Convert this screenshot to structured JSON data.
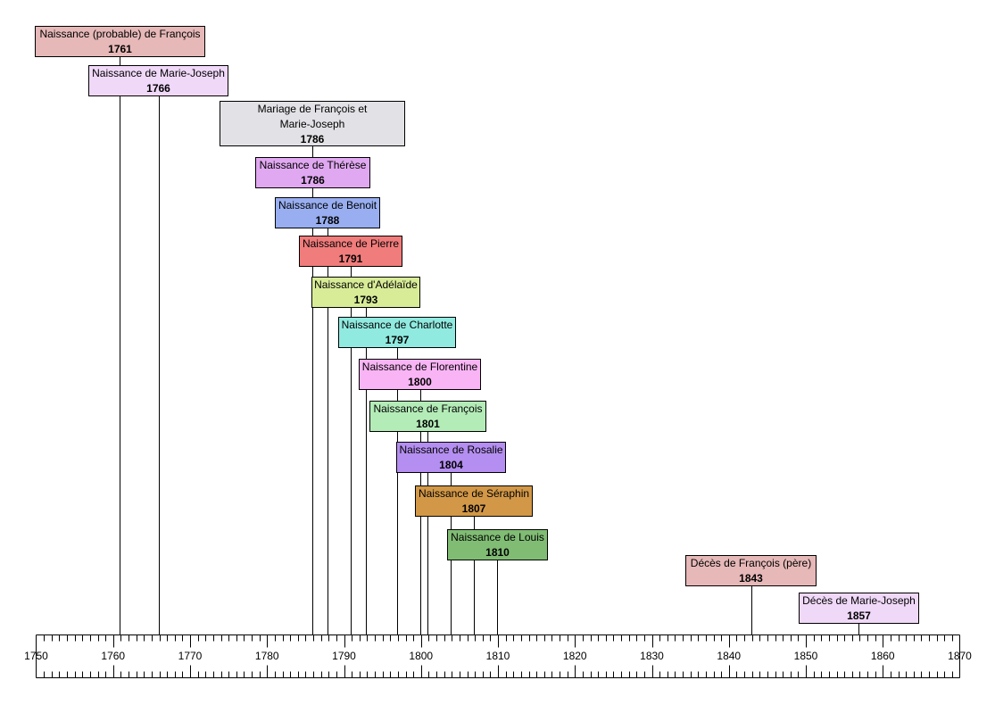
{
  "chart_data": {
    "type": "timeline",
    "title": "",
    "xlim": [
      1750,
      1870
    ],
    "axis": {
      "major_step": 10,
      "minor_step": 1,
      "tick_labels": [
        "1750",
        "1760",
        "1770",
        "1780",
        "1790",
        "1800",
        "1810",
        "1820",
        "1830",
        "1840",
        "1850",
        "1860",
        "1870"
      ]
    },
    "events": [
      {
        "label": "Naissance (probable) de François",
        "year": 1761,
        "color": "#e6b8b8"
      },
      {
        "label": "Naissance de Marie-Joseph",
        "year": 1766,
        "color": "#f0d8f8"
      },
      {
        "label": "Mariage de François et Marie-Joseph",
        "year": 1786,
        "color": "#e2e2e6"
      },
      {
        "label": "Naissance de Thérèse",
        "year": 1786,
        "color": "#e0a8f0"
      },
      {
        "label": "Naissance de Benoit",
        "year": 1788,
        "color": "#98aef0"
      },
      {
        "label": "Naissance de Pierre",
        "year": 1791,
        "color": "#f07c7c"
      },
      {
        "label": "Naissance d'Adélaïde",
        "year": 1793,
        "color": "#d8ec98"
      },
      {
        "label": "Naissance de Charlotte",
        "year": 1797,
        "color": "#90eae0"
      },
      {
        "label": "Naissance de Florentine",
        "year": 1800,
        "color": "#f8b4f4"
      },
      {
        "label": "Naissance de François",
        "year": 1801,
        "color": "#b4ecb8"
      },
      {
        "label": "Naissance de Rosalie",
        "year": 1804,
        "color": "#b48ef0"
      },
      {
        "label": "Naissance de Séraphin",
        "year": 1807,
        "color": "#d29848"
      },
      {
        "label": "Naissance de Louis",
        "year": 1810,
        "color": "#80bc74"
      },
      {
        "label": "Décès de François (père)",
        "year": 1843,
        "color": "#e6b8b8"
      },
      {
        "label": "Décès de Marie-Joseph",
        "year": 1857,
        "color": "#f0d8f8"
      }
    ]
  }
}
